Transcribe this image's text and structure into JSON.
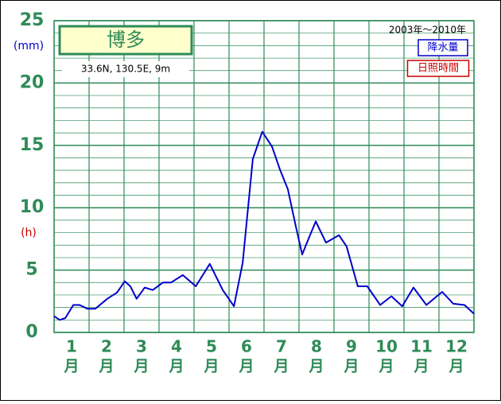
{
  "chart_data": {
    "type": "line",
    "title": "博多",
    "subtitle": "33.6N,  130.5E,  9m",
    "period": "2003年～2010年",
    "y_unit_label": "(mm)",
    "y2_unit_label": "(h)",
    "categories": [
      "1",
      "2",
      "3",
      "4",
      "5",
      "6",
      "7",
      "8",
      "9",
      "10",
      "11",
      "12"
    ],
    "category_suffix": "月",
    "xlim": [
      0,
      12
    ],
    "xticks": [
      0,
      1,
      2,
      3,
      4,
      5,
      6,
      7,
      8,
      9,
      10,
      11,
      12
    ],
    "ylim": [
      0,
      25
    ],
    "yticks": [
      0,
      5,
      10,
      15,
      20,
      25
    ],
    "yminor_ticks": [
      1,
      2,
      3,
      4,
      6,
      7,
      8,
      9,
      11,
      12,
      13,
      14,
      16,
      17,
      18,
      19,
      21,
      22,
      23,
      24
    ],
    "grid": true,
    "legend": [
      {
        "name": "降水量",
        "color": "#0000cc"
      },
      {
        "name": "日照時間",
        "color": "#cc0000"
      }
    ],
    "series": [
      {
        "name": "降水量",
        "color": "#0000cc",
        "x": [
          0,
          0.16,
          0.32,
          0.55,
          0.73,
          0.95,
          1.18,
          1.52,
          1.8,
          2.02,
          2.18,
          2.36,
          2.59,
          2.82,
          3.11,
          3.34,
          3.68,
          4.05,
          4.45,
          4.82,
          5.14,
          5.39,
          5.68,
          5.95,
          6.23,
          6.45,
          6.68,
          6.91,
          7.09,
          7.27,
          7.48,
          7.77,
          8.14,
          8.36,
          8.68,
          8.95,
          9.32,
          9.64,
          9.95,
          10.27,
          10.64,
          11.09,
          11.41,
          11.73,
          12
        ],
        "values": [
          1.3,
          1.0,
          1.15,
          2.2,
          2.2,
          1.9,
          1.9,
          2.7,
          3.2,
          4.1,
          3.7,
          2.7,
          3.6,
          3.4,
          4.0,
          4.0,
          4.6,
          3.7,
          5.5,
          3.4,
          2.1,
          5.6,
          13.9,
          16.1,
          14.9,
          13.1,
          11.5,
          8.5,
          6.25,
          7.5,
          8.9,
          7.2,
          7.8,
          6.9,
          3.7,
          3.7,
          2.2,
          2.9,
          2.1,
          3.6,
          2.2,
          3.25,
          2.3,
          2.2,
          1.5
        ]
      }
    ]
  }
}
